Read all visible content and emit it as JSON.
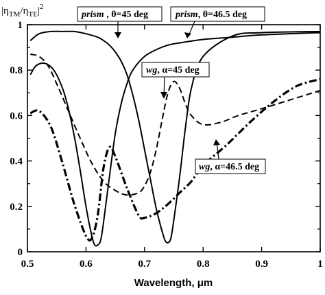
{
  "chart_data": {
    "type": "line",
    "xlabel": "Wavelength, μm",
    "ylabel": {
      "pre": "|η",
      "sub1": "TM",
      "mid": "/η",
      "sub2": "TE",
      "post": "|",
      "sup": "2"
    },
    "xlim": [
      0.5,
      1.0
    ],
    "ylim": [
      0,
      1.0
    ],
    "xticks": [
      "0.5",
      "0.6",
      "0.7",
      "0.8",
      "0.9",
      "1"
    ],
    "yticks": [
      "0",
      "0.2",
      "0.4",
      "0.6",
      "0.8",
      "1"
    ],
    "grid": false,
    "series": [
      {
        "id": "prism45",
        "style": "solid",
        "x": [
          0.505,
          0.52,
          0.54,
          0.56,
          0.58,
          0.6,
          0.62,
          0.63,
          0.64,
          0.65,
          0.66,
          0.67,
          0.68,
          0.69,
          0.7,
          0.71,
          0.72,
          0.73,
          0.735,
          0.74,
          0.745,
          0.75,
          0.76,
          0.77,
          0.78,
          0.8,
          0.85,
          0.9,
          1.0
        ],
        "y": [
          0.93,
          0.96,
          0.97,
          0.97,
          0.97,
          0.96,
          0.945,
          0.93,
          0.91,
          0.88,
          0.84,
          0.78,
          0.69,
          0.58,
          0.45,
          0.32,
          0.19,
          0.09,
          0.05,
          0.04,
          0.06,
          0.14,
          0.33,
          0.55,
          0.72,
          0.86,
          0.95,
          0.965,
          0.97
        ]
      },
      {
        "id": "prism465",
        "style": "solid",
        "x": [
          0.505,
          0.515,
          0.53,
          0.545,
          0.56,
          0.57,
          0.58,
          0.59,
          0.6,
          0.61,
          0.615,
          0.62,
          0.625,
          0.63,
          0.64,
          0.65,
          0.66,
          0.67,
          0.68,
          0.7,
          0.72,
          0.74,
          0.76,
          0.8,
          0.85,
          0.9,
          1.0
        ],
        "y": [
          0.78,
          0.82,
          0.83,
          0.8,
          0.72,
          0.63,
          0.51,
          0.36,
          0.2,
          0.07,
          0.03,
          0.03,
          0.05,
          0.13,
          0.33,
          0.52,
          0.65,
          0.74,
          0.8,
          0.86,
          0.89,
          0.91,
          0.92,
          0.935,
          0.945,
          0.955,
          0.965
        ]
      },
      {
        "id": "wg45",
        "style": "dashed",
        "x": [
          0.505,
          0.52,
          0.535,
          0.55,
          0.57,
          0.59,
          0.61,
          0.63,
          0.65,
          0.67,
          0.69,
          0.7,
          0.71,
          0.72,
          0.73,
          0.74,
          0.75,
          0.76,
          0.77,
          0.78,
          0.8,
          0.83,
          0.86,
          0.9,
          0.95,
          1.0
        ],
        "y": [
          0.87,
          0.86,
          0.82,
          0.74,
          0.62,
          0.5,
          0.39,
          0.31,
          0.27,
          0.25,
          0.26,
          0.29,
          0.35,
          0.45,
          0.58,
          0.7,
          0.75,
          0.72,
          0.65,
          0.6,
          0.56,
          0.57,
          0.6,
          0.63,
          0.67,
          0.71
        ]
      },
      {
        "id": "wg465",
        "style": "dashdot",
        "x": [
          0.505,
          0.52,
          0.54,
          0.56,
          0.58,
          0.6,
          0.61,
          0.62,
          0.63,
          0.64,
          0.65,
          0.67,
          0.69,
          0.7,
          0.72,
          0.74,
          0.76,
          0.78,
          0.8,
          0.84,
          0.88,
          0.92,
          0.96,
          1.0
        ],
        "y": [
          0.61,
          0.62,
          0.55,
          0.39,
          0.21,
          0.07,
          0.06,
          0.16,
          0.37,
          0.46,
          0.42,
          0.28,
          0.16,
          0.15,
          0.17,
          0.21,
          0.26,
          0.31,
          0.38,
          0.47,
          0.57,
          0.66,
          0.73,
          0.76
        ]
      }
    ],
    "annotations": [
      {
        "id": "ann-prism45",
        "italic": "prism",
        "rest": " , θ=45 deg",
        "point": [
          0.66,
          0.94
        ]
      },
      {
        "id": "ann-prism465",
        "italic": "prism",
        "rest": ", θ=46.5 deg",
        "point": [
          0.77,
          0.94
        ]
      },
      {
        "id": "ann-wg45",
        "italic": "wg",
        "rest": ", α=45 deg",
        "point": [
          0.74,
          0.655
        ]
      },
      {
        "id": "ann-wg465",
        "italic": "wg",
        "rest": ", α=46.5 deg",
        "point": [
          0.825,
          0.485
        ]
      }
    ]
  }
}
